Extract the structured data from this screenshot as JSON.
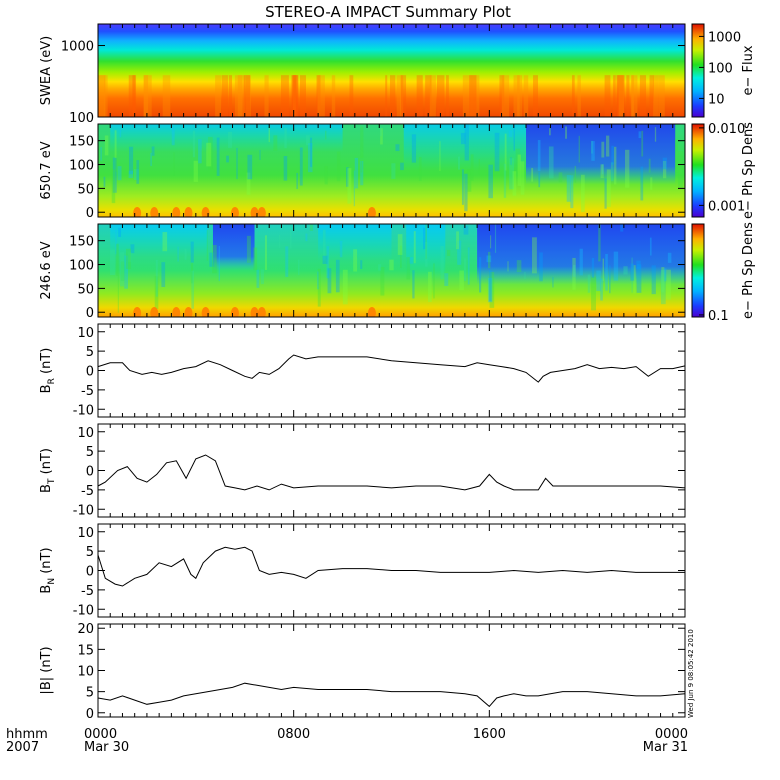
{
  "chart_data": {
    "type": "multi-panel",
    "title": "STEREO-A IMPACT Summary Plot",
    "time_axis": {
      "label_lines": [
        "hhmm",
        "2007"
      ],
      "ticks": [
        {
          "t": 0,
          "lines": [
            "0000",
            "Mar 30"
          ]
        },
        {
          "t": 8,
          "lines": [
            "0800",
            ""
          ]
        },
        {
          "t": 16,
          "lines": [
            "1600",
            ""
          ]
        },
        {
          "t": 24,
          "lines": [
            "0000",
            "Mar 31"
          ]
        }
      ],
      "range_hours": [
        0,
        24
      ],
      "minor_tick_interval_hours": 0.5
    },
    "timestamp": "Wed Jun  9 08:05:42 2010",
    "spectrograms": [
      {
        "id": "swea",
        "ylabel": "SWEA (eV)",
        "yscale": "log",
        "ylim": [
          100,
          2000
        ],
        "ytick_labels": [
          "1000",
          "100"
        ],
        "colorbar": {
          "label": "e− Flux",
          "scale": "log",
          "tick_labels": [
            "1000",
            "100",
            "10"
          ]
        }
      },
      {
        "id": "pad650",
        "ylabel": "650.7 eV",
        "yscale": "linear",
        "ylim": [
          -10,
          185
        ],
        "ytick_labels": [
          "150",
          "100",
          "50",
          "0"
        ],
        "colorbar": {
          "label": "e− Ph Sp Dens",
          "scale": "log",
          "tick_labels": [
            "0.010",
            "0.001"
          ]
        }
      },
      {
        "id": "pad246",
        "ylabel": "246.6 eV",
        "yscale": "linear",
        "ylim": [
          -10,
          185
        ],
        "ytick_labels": [
          "150",
          "100",
          "50",
          "0"
        ],
        "colorbar": {
          "label": "e− Ph Sp Dens",
          "scale": "log",
          "tick_labels": [
            "0.1"
          ]
        }
      }
    ],
    "line_panels": [
      {
        "id": "br",
        "ylabel_main": "B",
        "ylabel_sub": "R",
        "ylabel_unit": " (nT)",
        "ylim": [
          -12,
          12
        ],
        "yticks": [
          10,
          5,
          0,
          -5,
          -10
        ],
        "ytick_labels": [
          "10",
          "5",
          "0",
          "-5",
          "-10"
        ],
        "series": {
          "t": [
            0,
            0.5,
            1,
            1.3,
            1.8,
            2.2,
            2.6,
            3,
            3.5,
            4,
            4.5,
            5,
            5.5,
            6,
            6.3,
            6.6,
            7,
            7.4,
            7.8,
            8,
            8.5,
            9,
            10,
            11,
            12,
            13,
            14,
            15,
            15.5,
            16,
            16.5,
            17,
            17.5,
            18,
            18.2,
            18.5,
            19,
            19.5,
            20,
            20.5,
            21,
            21.5,
            22,
            22.5,
            23,
            23.5,
            24
          ],
          "y": [
            1,
            2,
            2,
            0,
            -1,
            -0.5,
            -1,
            -0.5,
            0.5,
            1,
            2.5,
            1.5,
            0,
            -1.5,
            -2,
            -0.5,
            -1,
            0.5,
            3,
            4,
            3,
            3.5,
            3.5,
            3.5,
            2.5,
            2,
            1.5,
            1,
            2,
            1.5,
            1,
            0.5,
            -0.5,
            -3,
            -1.5,
            -0.5,
            0,
            0.5,
            1.5,
            0.5,
            0.8,
            0.5,
            1,
            -1.5,
            0.5,
            0.5,
            1.2
          ]
        }
      },
      {
        "id": "bt",
        "ylabel_main": "B",
        "ylabel_sub": "T",
        "ylabel_unit": " (nT)",
        "ylim": [
          -12,
          12
        ],
        "yticks": [
          10,
          5,
          0,
          -5,
          -10
        ],
        "ytick_labels": [
          "10",
          "5",
          "0",
          "-5",
          "-10"
        ],
        "series": {
          "t": [
            0,
            0.3,
            0.8,
            1.2,
            1.6,
            2,
            2.4,
            2.8,
            3.2,
            3.6,
            4,
            4.4,
            4.8,
            5.2,
            5.6,
            6,
            6.5,
            7,
            7.5,
            8,
            9,
            10,
            11,
            12,
            13,
            14,
            15,
            15.6,
            16,
            16.3,
            16.6,
            17,
            17.5,
            18,
            18.3,
            18.6,
            19,
            20,
            21,
            22,
            23,
            24
          ],
          "y": [
            -4,
            -3,
            0,
            1,
            -2,
            -3,
            -1,
            2,
            2.5,
            -2,
            3,
            4,
            2.5,
            -4,
            -4.5,
            -5,
            -4,
            -5,
            -3.5,
            -4.5,
            -4,
            -4,
            -4,
            -4.5,
            -4,
            -4,
            -5,
            -4,
            -1,
            -3,
            -4,
            -5,
            -5,
            -5,
            -2,
            -4,
            -4,
            -4,
            -4,
            -4,
            -4,
            -4.5
          ]
        }
      },
      {
        "id": "bn",
        "ylabel_main": "B",
        "ylabel_sub": "N",
        "ylabel_unit": " (nT)",
        "ylim": [
          -12,
          12
        ],
        "yticks": [
          10,
          5,
          0,
          -5,
          -10
        ],
        "ytick_labels": [
          "10",
          "5",
          "0",
          "-5",
          "-10"
        ],
        "series": {
          "t": [
            0,
            0.3,
            0.7,
            1,
            1.5,
            2,
            2.5,
            3,
            3.5,
            3.8,
            4,
            4.3,
            4.8,
            5.2,
            5.6,
            6,
            6.3,
            6.6,
            7,
            7.5,
            8,
            8.5,
            9,
            10,
            11,
            12,
            13,
            14,
            15,
            16,
            17,
            18,
            19,
            20,
            21,
            22,
            23,
            24
          ],
          "y": [
            4,
            -2,
            -3.5,
            -4,
            -2,
            -1,
            2,
            1,
            3,
            -1,
            -2,
            2,
            5,
            6,
            5.5,
            6,
            5,
            0,
            -1,
            -0.5,
            -1,
            -2,
            0,
            0.5,
            0.5,
            0,
            0,
            -0.5,
            -0.5,
            -0.5,
            0,
            -0.5,
            0,
            -0.5,
            0,
            -0.5,
            -0.5,
            -0.5
          ]
        }
      },
      {
        "id": "bmag",
        "ylabel_main": "|B| (nT)",
        "ylabel_sub": "",
        "ylabel_unit": "",
        "ylim": [
          -1,
          21
        ],
        "yticks": [
          20,
          15,
          10,
          5,
          0
        ],
        "ytick_labels": [
          "20",
          "15",
          "10",
          "5",
          "0"
        ],
        "series": {
          "t": [
            0,
            0.5,
            1,
            1.5,
            2,
            2.5,
            3,
            3.5,
            4,
            4.5,
            5,
            5.5,
            6,
            6.5,
            7,
            7.5,
            8,
            9,
            10,
            11,
            12,
            13,
            14,
            15,
            15.5,
            16,
            16.3,
            16.6,
            17,
            17.5,
            18,
            18.5,
            19,
            20,
            21,
            22,
            23,
            24
          ],
          "y": [
            3.5,
            3,
            4,
            3,
            2,
            2.5,
            3,
            4,
            4.5,
            5,
            5.5,
            6,
            7,
            6.5,
            6,
            5.5,
            6,
            5.5,
            5.5,
            5.5,
            5,
            5,
            5,
            4.5,
            4,
            1.5,
            3.5,
            4,
            4.5,
            4,
            4,
            4.5,
            5,
            5,
            4.5,
            4,
            4,
            4.5
          ]
        }
      }
    ]
  }
}
